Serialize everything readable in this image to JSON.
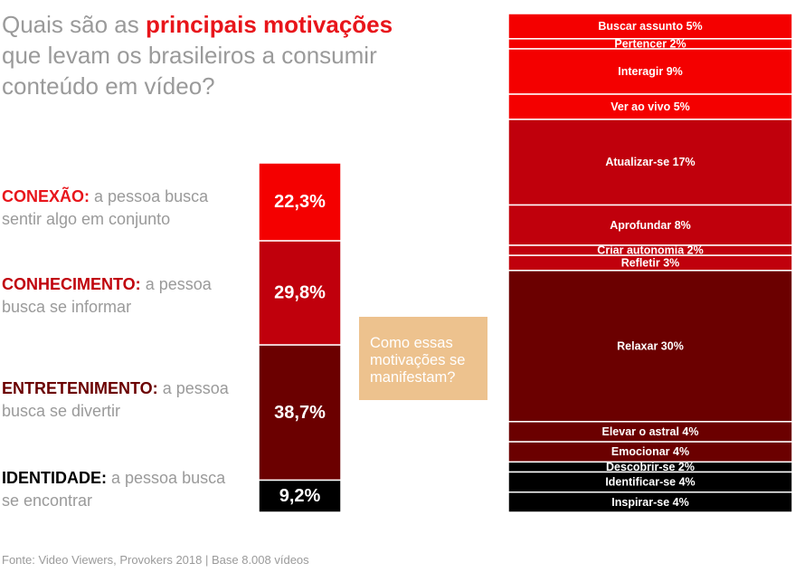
{
  "title": {
    "part1": "Quais são as ",
    "highlight": "principais motivações",
    "part2": "que levam os brasileiros a consumir conteúdo em vídeo?"
  },
  "categories": [
    {
      "name": "CONEXÃO:",
      "desc": "a pessoa busca sentir algo em conjunto",
      "color": "#e8151b"
    },
    {
      "name": "CONHECIMENTO:",
      "desc": "a pessoa busca se informar",
      "color": "#c0000c"
    },
    {
      "name": "ENTRETENIMENTO:",
      "desc": "a pessoa busca se divertir",
      "color": "#6b0000"
    },
    {
      "name": "IDENTIDADE:",
      "desc": "a pessoa busca se encontrar",
      "color": "#000000"
    }
  ],
  "callout": "Como essas motivações se manifestam?",
  "source": "Fonte: Video Viewers, Provokers 2018 | Base 8.008 vídeos",
  "chart_data": [
    {
      "type": "bar",
      "stacked": true,
      "categories": [
        "CONEXÃO",
        "CONHECIMENTO",
        "ENTRETENIMENTO",
        "IDENTIDADE"
      ],
      "values": [
        22.3,
        29.8,
        38.7,
        9.2
      ],
      "labels": [
        "22,3%",
        "29,8%",
        "38,7%",
        "9,2%"
      ],
      "colors": [
        "#f40000",
        "#c0000c",
        "#6b0000",
        "#000000"
      ]
    },
    {
      "type": "bar",
      "stacked": true,
      "categories": [
        "Buscar assunto",
        "Pertencer",
        "Interagir",
        "Ver ao vivo",
        "Atualizar-se",
        "Aprofundar",
        "Criar autonomia",
        "Refletir",
        "Relaxar",
        "Elevar o astral",
        "Emocionar",
        "Descobrir-se",
        "Identificar-se",
        "Inspirar-se"
      ],
      "values": [
        5,
        2,
        9,
        5,
        17,
        8,
        2,
        3,
        30,
        4,
        4,
        2,
        4,
        4
      ],
      "labels": [
        "Buscar assunto 5%",
        "Pertencer 2%",
        "Interagir  9%",
        "Ver ao vivo 5%",
        "Atualizar-se 17%",
        "Aprofundar 8%",
        "Criar autonomia 2%",
        "Refletir 3%",
        "Relaxar 30%",
        "Elevar o astral 4%",
        "Emocionar 4%",
        "Descobrir-se 2%",
        "Identificar-se 4%",
        "Inspirar-se 4%"
      ],
      "colors": [
        "#f40000",
        "#f40000",
        "#f40000",
        "#f40000",
        "#c0000c",
        "#c0000c",
        "#c0000c",
        "#c0000c",
        "#6b0000",
        "#6b0000",
        "#6b0000",
        "#000000",
        "#000000",
        "#000000"
      ]
    }
  ]
}
